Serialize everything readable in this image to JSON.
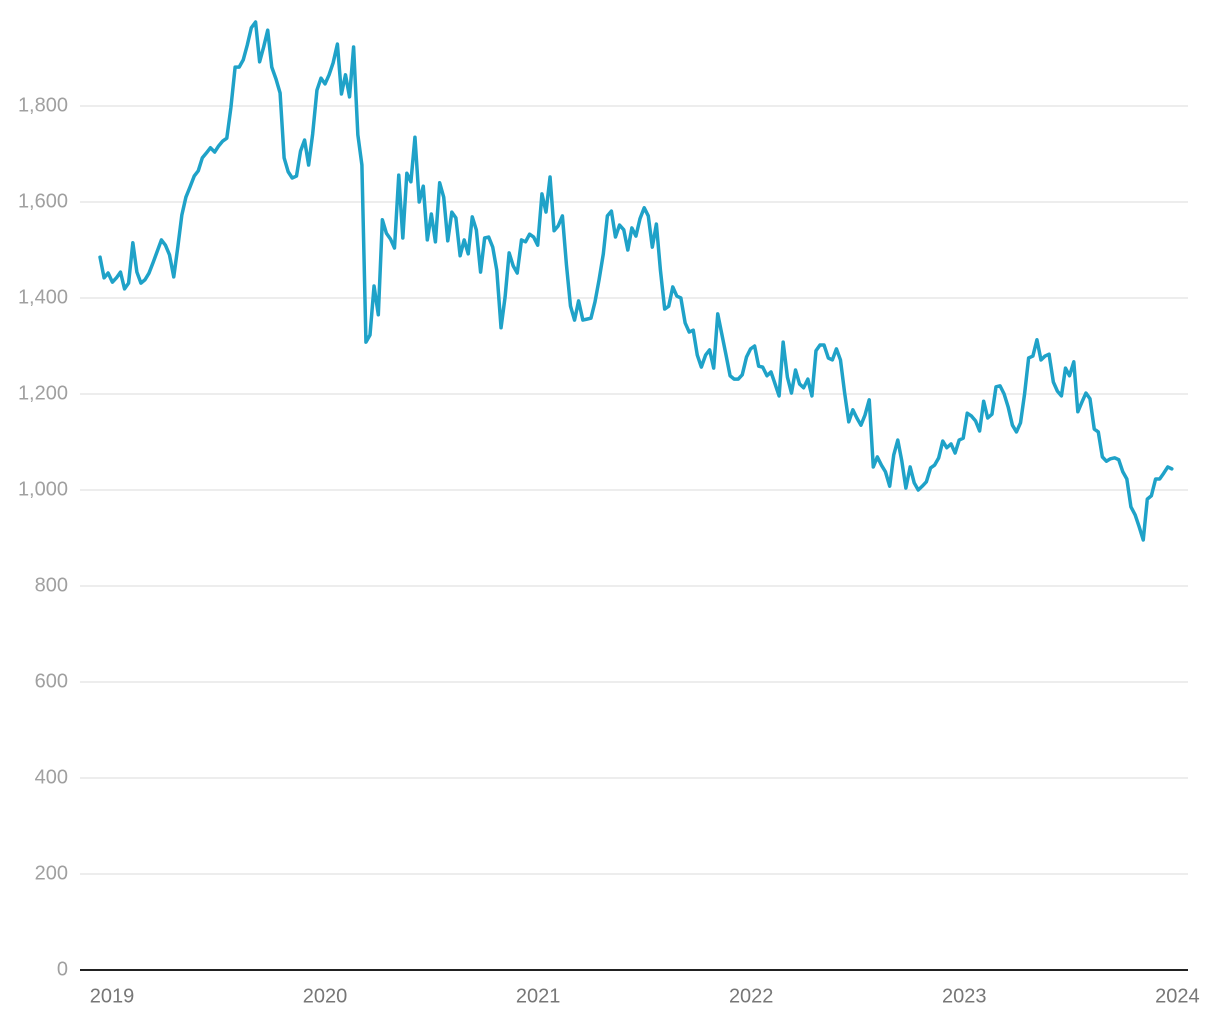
{
  "chart_data": {
    "type": "line",
    "color": "#1fa2c8",
    "grid": true,
    "xlim": [
      2018.85,
      2024.05
    ],
    "xticks": [
      2019,
      2020,
      2021,
      2022,
      2023,
      2024
    ],
    "ylim": [
      0,
      2000
    ],
    "yticks": [
      0,
      200,
      400,
      600,
      800,
      {
        "value": 1000,
        "label": "1,000"
      },
      {
        "value": 1200,
        "label": "1,200"
      },
      {
        "value": 1400,
        "label": "1,400"
      },
      {
        "value": 1600,
        "label": "1,600"
      },
      {
        "value": 1800,
        "label": "1,800"
      }
    ],
    "x": [
      2018.944,
      2018.963,
      2018.982,
      2019.002,
      2019.021,
      2019.04,
      2019.059,
      2019.078,
      2019.098,
      2019.117,
      2019.136,
      2019.155,
      2019.174,
      2019.194,
      2019.213,
      2019.232,
      2019.251,
      2019.27,
      2019.29,
      2019.309,
      2019.328,
      2019.347,
      2019.366,
      2019.386,
      2019.405,
      2019.424,
      2019.443,
      2019.462,
      2019.482,
      2019.501,
      2019.52,
      2019.539,
      2019.558,
      2019.578,
      2019.597,
      2019.616,
      2019.635,
      2019.654,
      2019.674,
      2019.693,
      2019.712,
      2019.731,
      2019.75,
      2019.77,
      2019.789,
      2019.808,
      2019.827,
      2019.846,
      2019.866,
      2019.885,
      2019.904,
      2019.923,
      2019.942,
      2019.962,
      2019.981,
      2020.0,
      2020.019,
      2020.038,
      2020.058,
      2020.077,
      2020.096,
      2020.115,
      2020.134,
      2020.154,
      2020.173,
      2020.192,
      2020.211,
      2020.23,
      2020.25,
      2020.269,
      2020.288,
      2020.307,
      2020.326,
      2020.346,
      2020.365,
      2020.384,
      2020.403,
      2020.422,
      2020.442,
      2020.461,
      2020.48,
      2020.499,
      2020.518,
      2020.538,
      2020.557,
      2020.576,
      2020.595,
      2020.614,
      2020.634,
      2020.653,
      2020.672,
      2020.691,
      2020.71,
      2020.73,
      2020.749,
      2020.768,
      2020.787,
      2020.806,
      2020.826,
      2020.845,
      2020.864,
      2020.883,
      2020.902,
      2020.922,
      2020.941,
      2020.96,
      2020.979,
      2020.998,
      2021.018,
      2021.037,
      2021.056,
      2021.075,
      2021.094,
      2021.114,
      2021.133,
      2021.152,
      2021.171,
      2021.19,
      2021.21,
      2021.229,
      2021.248,
      2021.267,
      2021.286,
      2021.306,
      2021.325,
      2021.344,
      2021.363,
      2021.382,
      2021.402,
      2021.421,
      2021.44,
      2021.459,
      2021.478,
      2021.498,
      2021.517,
      2021.536,
      2021.555,
      2021.574,
      2021.594,
      2021.613,
      2021.632,
      2021.651,
      2021.67,
      2021.69,
      2021.709,
      2021.728,
      2021.747,
      2021.766,
      2021.786,
      2021.805,
      2021.824,
      2021.843,
      2021.862,
      2021.882,
      2021.901,
      2021.92,
      2021.939,
      2021.958,
      2021.978,
      2021.997,
      2022.016,
      2022.035,
      2022.054,
      2022.074,
      2022.093,
      2022.112,
      2022.131,
      2022.15,
      2022.17,
      2022.189,
      2022.208,
      2022.227,
      2022.246,
      2022.266,
      2022.285,
      2022.304,
      2022.323,
      2022.342,
      2022.362,
      2022.381,
      2022.4,
      2022.419,
      2022.438,
      2022.458,
      2022.477,
      2022.496,
      2022.515,
      2022.534,
      2022.554,
      2022.573,
      2022.592,
      2022.611,
      2022.63,
      2022.65,
      2022.669,
      2022.688,
      2022.707,
      2022.726,
      2022.746,
      2022.765,
      2022.784,
      2022.803,
      2022.822,
      2022.842,
      2022.861,
      2022.88,
      2022.899,
      2022.918,
      2022.938,
      2022.957,
      2022.976,
      2022.995,
      2023.014,
      2023.034,
      2023.053,
      2023.072,
      2023.091,
      2023.11,
      2023.13,
      2023.149,
      2023.168,
      2023.187,
      2023.206,
      2023.226,
      2023.245,
      2023.264,
      2023.283,
      2023.302,
      2023.322,
      2023.341,
      2023.36,
      2023.379,
      2023.398,
      2023.418,
      2023.437,
      2023.456,
      2023.475,
      2023.494,
      2023.514,
      2023.533,
      2023.552,
      2023.571,
      2023.59,
      2023.61,
      2023.629,
      2023.648,
      2023.667,
      2023.686,
      2023.706,
      2023.725,
      2023.744,
      2023.763,
      2023.782,
      2023.802,
      2023.821,
      2023.84,
      2023.859,
      2023.878,
      2023.898,
      2023.917,
      2023.936,
      2023.955,
      2023.974
    ],
    "values": [
      1485,
      1442,
      1452,
      1433,
      1442,
      1454,
      1419,
      1431,
      1515,
      1454,
      1431,
      1438,
      1452,
      1475,
      1498,
      1521,
      1510,
      1490,
      1444,
      1506,
      1573,
      1610,
      1631,
      1654,
      1665,
      1692,
      1702,
      1713,
      1704,
      1717,
      1727,
      1733,
      1796,
      1881,
      1881,
      1896,
      1927,
      1963,
      1975,
      1892,
      1923,
      1958,
      1881,
      1856,
      1827,
      1692,
      1663,
      1650,
      1654,
      1706,
      1729,
      1677,
      1742,
      1833,
      1858,
      1846,
      1865,
      1890,
      1929,
      1825,
      1865,
      1819,
      1923,
      1740,
      1677,
      1308,
      1323,
      1425,
      1365,
      1563,
      1535,
      1523,
      1504,
      1656,
      1525,
      1660,
      1642,
      1735,
      1600,
      1633,
      1521,
      1575,
      1517,
      1640,
      1610,
      1519,
      1579,
      1567,
      1488,
      1521,
      1492,
      1569,
      1542,
      1454,
      1525,
      1527,
      1506,
      1458,
      1338,
      1402,
      1494,
      1467,
      1452,
      1521,
      1517,
      1533,
      1527,
      1510,
      1617,
      1579,
      1652,
      1540,
      1550,
      1571,
      1469,
      1383,
      1354,
      1394,
      1354,
      1356,
      1358,
      1392,
      1438,
      1492,
      1571,
      1581,
      1527,
      1552,
      1542,
      1500,
      1546,
      1529,
      1565,
      1588,
      1571,
      1506,
      1554,
      1458,
      1377,
      1383,
      1423,
      1404,
      1400,
      1348,
      1329,
      1333,
      1281,
      1256,
      1281,
      1292,
      1254,
      1367,
      1325,
      1281,
      1238,
      1231,
      1231,
      1240,
      1277,
      1294,
      1300,
      1258,
      1256,
      1238,
      1246,
      1221,
      1196,
      1308,
      1235,
      1202,
      1250,
      1221,
      1213,
      1231,
      1196,
      1290,
      1302,
      1302,
      1275,
      1271,
      1294,
      1271,
      1204,
      1142,
      1167,
      1150,
      1135,
      1156,
      1188,
      1048,
      1069,
      1052,
      1038,
      1008,
      1073,
      1104,
      1060,
      1004,
      1048,
      1015,
      1000,
      1008,
      1017,
      1046,
      1052,
      1067,
      1102,
      1088,
      1096,
      1077,
      1104,
      1108,
      1160,
      1154,
      1144,
      1123,
      1185,
      1150,
      1158,
      1215,
      1217,
      1200,
      1173,
      1135,
      1121,
      1140,
      1200,
      1275,
      1279,
      1313,
      1271,
      1279,
      1283,
      1225,
      1206,
      1196,
      1254,
      1238,
      1267,
      1163,
      1183,
      1202,
      1190,
      1127,
      1121,
      1069,
      1060,
      1065,
      1067,
      1063,
      1038,
      1023,
      965,
      948,
      923,
      896,
      981,
      988,
      1023,
      1023,
      1035,
      1048,
      1044
    ]
  }
}
